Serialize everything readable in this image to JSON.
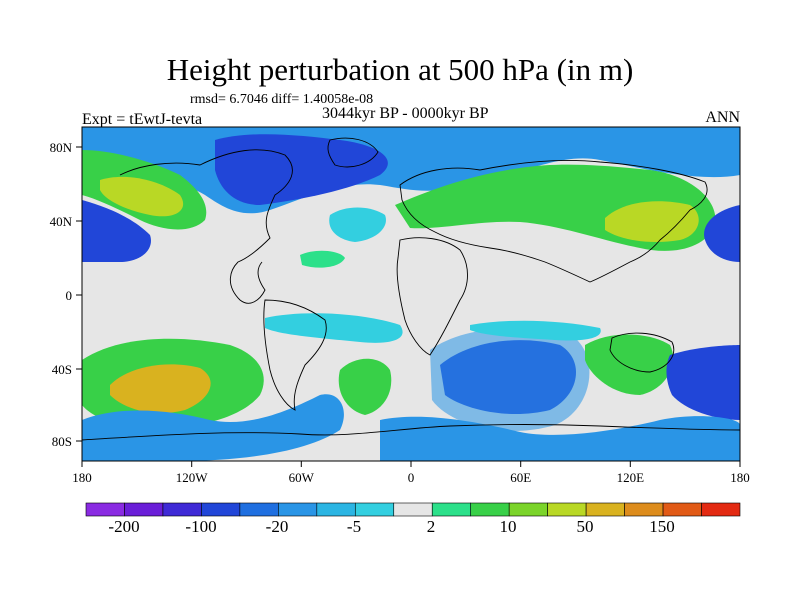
{
  "title": "Height perturbation at 500 hPa (in m)",
  "stats_line": "rmsd= 6.7046 diff= 1.40058e-08",
  "experiment": "Expt = tEwtJ-tevta",
  "period": "3044kyr BP - 0000kyr BP",
  "season": "ANN",
  "axes": {
    "lon_ticks": [
      "180",
      "120W",
      "60W",
      "0",
      "60E",
      "120E",
      "180"
    ],
    "lat_ticks": [
      "80N",
      "40N",
      "0",
      "40S",
      "80S"
    ]
  },
  "colorbar": {
    "colors": [
      "#8a2be2",
      "#6a1ed8",
      "#3f2ad6",
      "#2146d8",
      "#1f6fe0",
      "#2a95e6",
      "#2bb5e3",
      "#33cfe0",
      "#e6e6e6",
      "#2ce08a",
      "#38d048",
      "#7bd42a",
      "#b9d825",
      "#d9b21f",
      "#dd8c1c",
      "#e15a16",
      "#e32a12"
    ],
    "labels": [
      "-200",
      "-100",
      "-20",
      "-5",
      "2",
      "10",
      "50",
      "150"
    ]
  },
  "field_colors": {
    "neg_strong": "#2146d8",
    "neg_med": "#2a95e6",
    "neg_weak": "#33cfe0",
    "neutral": "#e6e6e6",
    "pos_weak": "#2ce08a",
    "pos_med": "#38d048",
    "pos_strong": "#b9d825",
    "pos_peak": "#d9b21f"
  }
}
